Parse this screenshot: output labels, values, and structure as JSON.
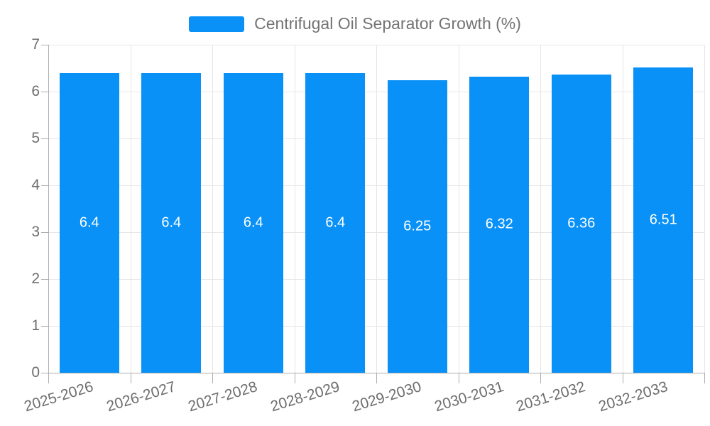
{
  "legend": {
    "label": "Centrifugal Oil Separator Growth (%)",
    "swatch_color": "#0991f7"
  },
  "chart_data": {
    "type": "bar",
    "title": "Centrifugal Oil Separator Growth (%)",
    "categories": [
      "2025-2026",
      "2026-2027",
      "2027-2028",
      "2028-2029",
      "2029-2030",
      "2030-2031",
      "2031-2032",
      "2032-2033"
    ],
    "values": [
      6.4,
      6.4,
      6.4,
      6.4,
      6.25,
      6.32,
      6.36,
      6.51
    ],
    "value_labels": [
      "6.4",
      "6.4",
      "6.4",
      "6.4",
      "6.25",
      "6.32",
      "6.36",
      "6.51"
    ],
    "y_ticks": [
      "0",
      "1",
      "2",
      "3",
      "4",
      "5",
      "6",
      "7"
    ],
    "ylim": [
      0,
      7
    ],
    "xlabel": "",
    "ylabel": "",
    "grid": true,
    "legend_position": "top",
    "bar_color": "#0991f7",
    "value_label_color": "#ffffff",
    "axis_label_color": "#6e6e6e",
    "gridline_color": "#e6e6e6",
    "axis_line_color": "#adadad"
  }
}
